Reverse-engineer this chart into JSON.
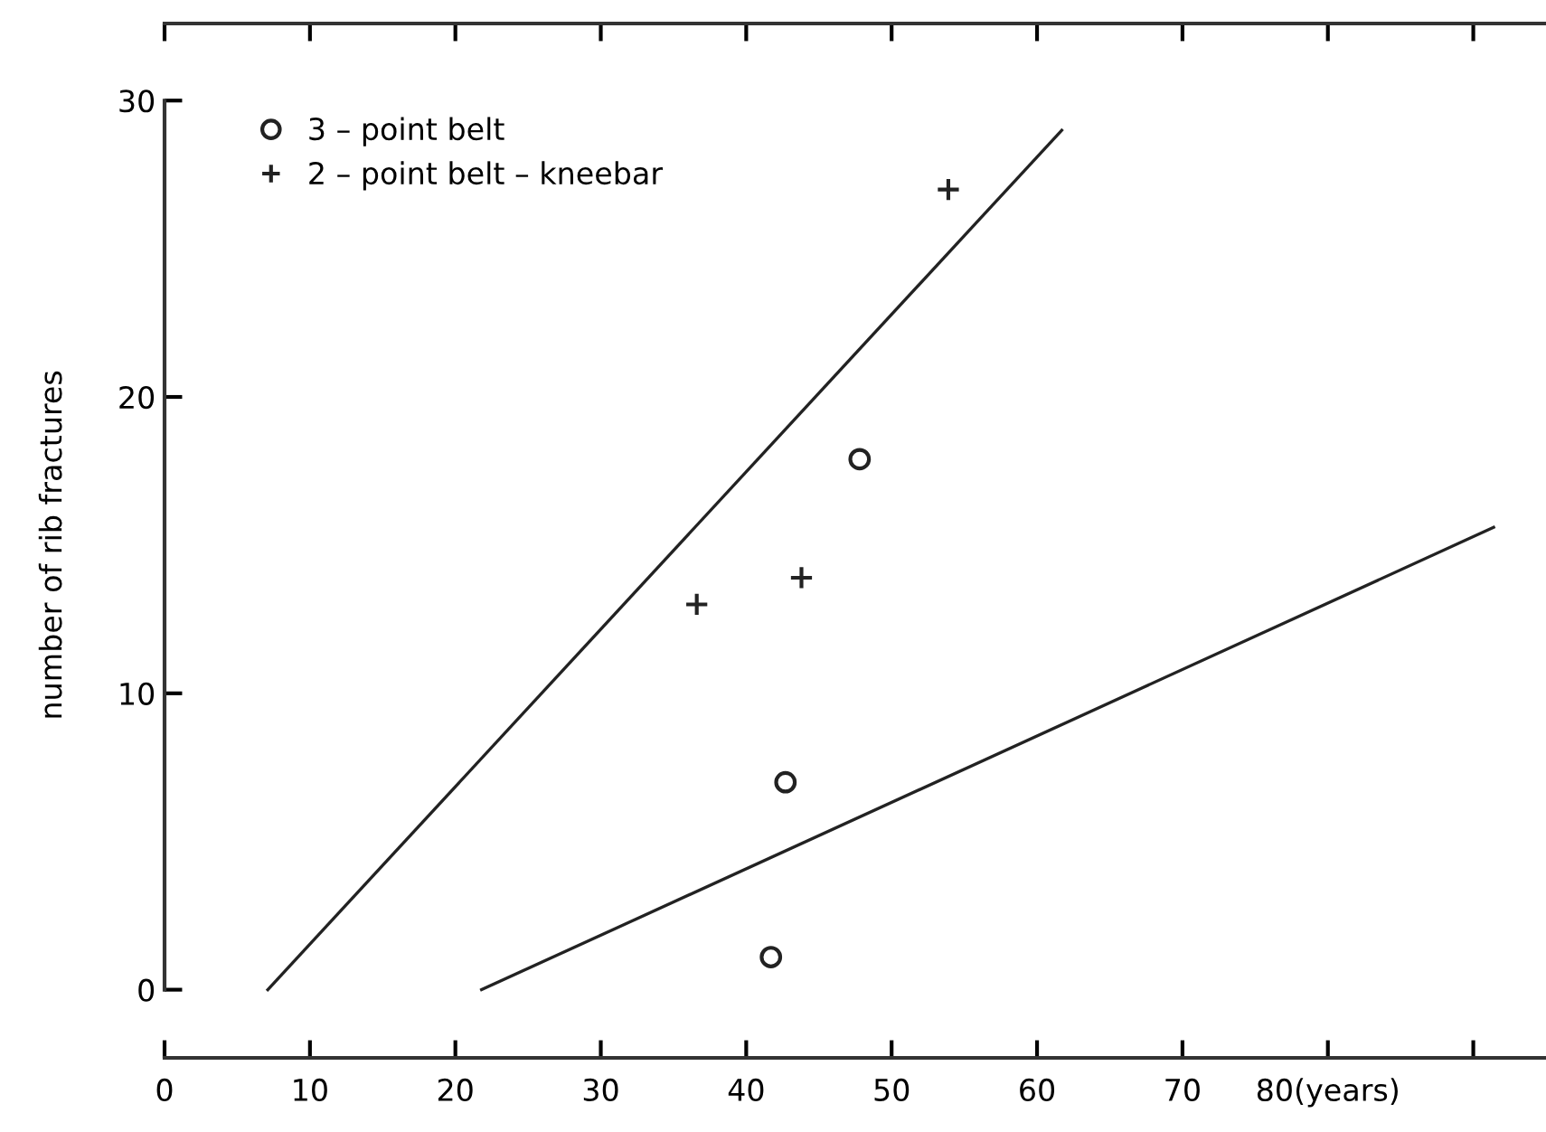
{
  "chart_data": {
    "type": "scatter",
    "ylabel": "number of rib fractures",
    "xlim": [
      0,
      95
    ],
    "ylim": [
      -2.3,
      32.6
    ],
    "xticks": [
      0,
      10,
      20,
      30,
      40,
      50,
      60,
      70,
      {
        "value": 80,
        "label": "80(years)"
      },
      {
        "value": 90,
        "label": null
      }
    ],
    "yticks": [
      0,
      10,
      20,
      30
    ],
    "grid": false,
    "legend": "top left",
    "series": [
      {
        "name": "3 – point belt",
        "marker": "circle",
        "color": "#222222",
        "x": [
          47.8,
          42.7,
          41.7
        ],
        "values": [
          17.9,
          7.0,
          1.1
        ]
      },
      {
        "name": "2 – point belt – kneebar",
        "marker": "cross",
        "color": "#222222",
        "x": [
          36.6,
          43.8,
          53.9
        ],
        "values": [
          13.0,
          13.9,
          27.0
        ]
      },
      {
        "type": "line",
        "color": "#222222",
        "x": [
          7.1,
          61.7
        ],
        "values": [
          0,
          29.0
        ]
      },
      {
        "type": "line",
        "color": "#222222",
        "x": [
          21.8,
          91.4
        ],
        "values": [
          0,
          15.6
        ]
      }
    ]
  }
}
